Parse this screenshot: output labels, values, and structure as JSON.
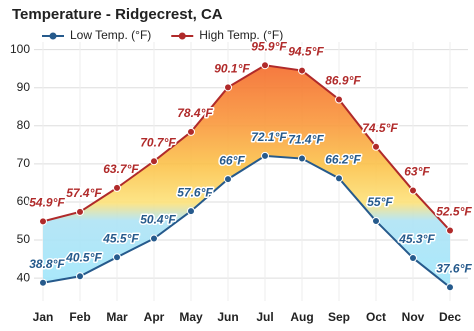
{
  "chart_data": {
    "type": "line",
    "title": "Temperature - Ridgecrest, CA",
    "categories": [
      "Jan",
      "Feb",
      "Mar",
      "Apr",
      "May",
      "Jun",
      "Jul",
      "Aug",
      "Sep",
      "Oct",
      "Nov",
      "Dec"
    ],
    "series": [
      {
        "name": "Low Temp. (°F)",
        "color": "#265a8c",
        "values": [
          38.8,
          40.5,
          45.5,
          50.4,
          57.6,
          66,
          72.1,
          71.4,
          66.2,
          55,
          45.3,
          37.6
        ],
        "value_labels": [
          "38.8°F",
          "40.5°F",
          "45.5°F",
          "50.4°F",
          "57.6°F",
          "66°F",
          "72.1°F",
          "71.4°F",
          "66.2°F",
          "55°F",
          "45.3°F",
          "37.6°F"
        ]
      },
      {
        "name": "High Temp. (°F)",
        "color": "#b02a2a",
        "values": [
          54.9,
          57.4,
          63.7,
          70.7,
          78.4,
          90.1,
          95.9,
          94.5,
          86.9,
          74.5,
          63,
          52.5
        ],
        "value_labels": [
          "54.9°F",
          "57.4°F",
          "63.7°F",
          "70.7°F",
          "78.4°F",
          "90.1°F",
          "95.9°F",
          "94.5°F",
          "86.9°F",
          "74.5°F",
          "63°F",
          "52.5°F"
        ]
      }
    ],
    "ylim": [
      34,
      102
    ],
    "yticks": [
      40,
      50,
      60,
      70,
      80,
      90,
      100
    ],
    "grid": true
  }
}
